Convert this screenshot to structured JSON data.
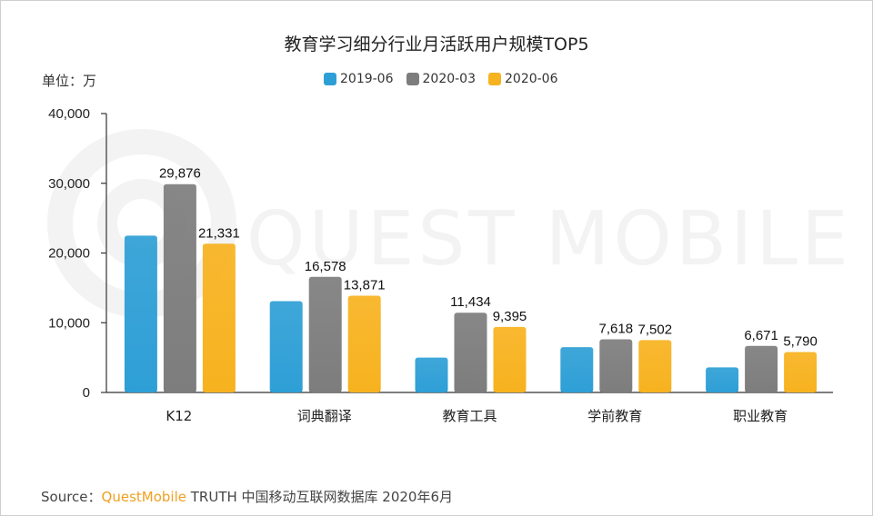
{
  "chart": {
    "title": "教育学习细分行业月活跃用户规模TOP5",
    "unit_label": "单位：万"
  },
  "watermark": {
    "text": "QUEST MOBILE"
  },
  "source": {
    "prefix": "Source：",
    "brand": "QuestMobile",
    "rest": " TRUTH 中国移动互联网数据库 2020年6月"
  },
  "colors": {
    "s1": "#2e9fd6",
    "s2": "#7d7d7d",
    "s3": "#f7b21f"
  },
  "chart_data": {
    "type": "bar",
    "title": "教育学习细分行业月活跃用户规模TOP5",
    "ylabel": "单位：万",
    "xlabel": "",
    "ylim": [
      0,
      40000
    ],
    "yticks": [
      "0",
      "10,000",
      "20,000",
      "30,000",
      "40,000"
    ],
    "grid": false,
    "legend_position": "top",
    "categories": [
      "K12",
      "词典翻译",
      "教育工具",
      "学前教育",
      "职业教育"
    ],
    "series": [
      {
        "name": "2019-06",
        "values": [
          22500,
          13100,
          5000,
          6500,
          3600
        ],
        "labels": [
          "",
          "",
          "",
          "",
          ""
        ]
      },
      {
        "name": "2020-03",
        "values": [
          29876,
          16578,
          11434,
          7618,
          6671
        ],
        "labels": [
          "29,876",
          "16,578",
          "11,434",
          "7,618",
          "6,671"
        ]
      },
      {
        "name": "2020-06",
        "values": [
          21331,
          13871,
          9395,
          7502,
          5790
        ],
        "labels": [
          "21,331",
          "13,871",
          "9,395",
          "7,502",
          "5,790"
        ]
      }
    ]
  }
}
